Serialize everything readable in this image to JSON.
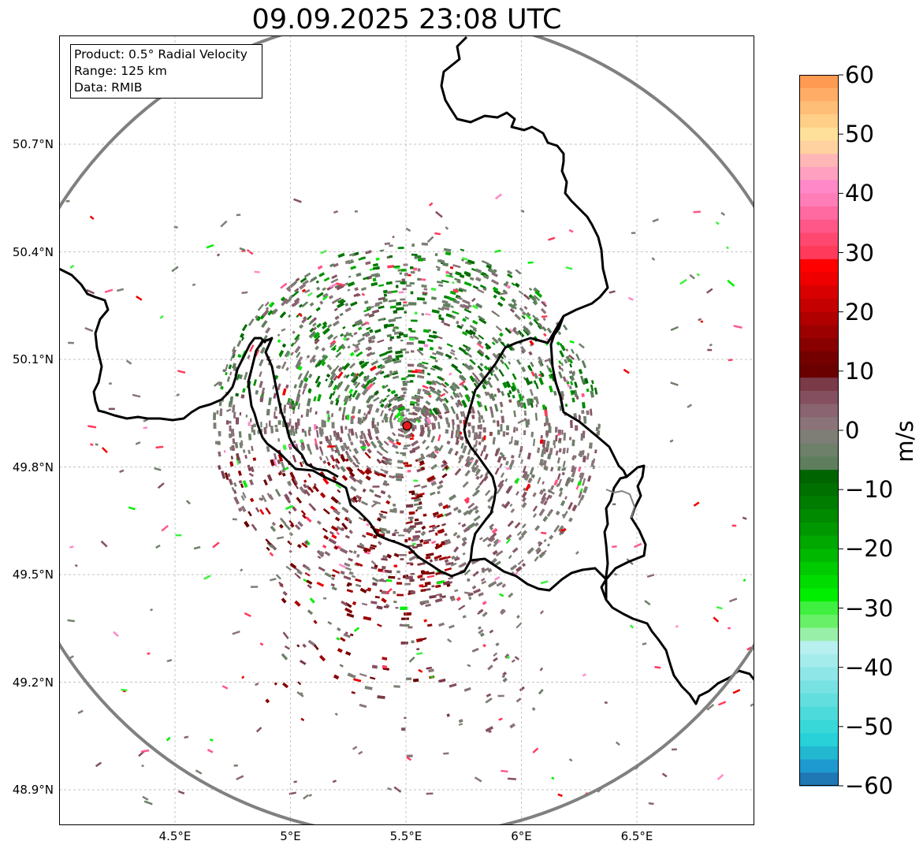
{
  "map": {
    "title": "09.09.2025 23:08 UTC",
    "info_lines": [
      "Product: 0.5° Radial Velocity",
      "Range: 125 km",
      "Data: RMIB"
    ],
    "lat_labels": [
      "50.7°N",
      "50.4°N",
      "50.1°N",
      "49.8°N",
      "49.5°N",
      "49.2°N",
      "48.9°N"
    ],
    "lat_values": [
      50.7,
      50.4,
      50.1,
      49.8,
      49.5,
      49.2,
      48.9
    ],
    "lon_labels": [
      "4.5°E",
      "5°E",
      "5.5°E",
      "6°E",
      "6.5°E"
    ],
    "lon_values": [
      4.5,
      5.0,
      5.5,
      6.0,
      6.5
    ],
    "lon_range": [
      4.0,
      7.0
    ],
    "lat_range": [
      48.8,
      51.0
    ],
    "radar_site": {
      "lon": 5.505,
      "lat": 49.915
    },
    "range_ring_color": "#808080",
    "border_color": "#000000",
    "site_marker_color": "#e41a1c",
    "grid": true
  },
  "colorbar": {
    "unit": "m/s",
    "min": -60,
    "max": 60,
    "tick_labels": [
      "60",
      "50",
      "40",
      "30",
      "20",
      "10",
      "0",
      "−10",
      "−20",
      "−30",
      "−40",
      "−50",
      "−60"
    ],
    "tick_values": [
      60,
      50,
      40,
      30,
      20,
      10,
      0,
      -10,
      -20,
      -30,
      -40,
      -50,
      -60
    ],
    "colors_top_to_bottom": [
      "#ff9a52",
      "#ffad66",
      "#ffbe78",
      "#ffcf88",
      "#ffe09a",
      "#ffd2a0",
      "#ffb6b6",
      "#ffa0c0",
      "#ff88c8",
      "#ff7eb8",
      "#ff6aa0",
      "#ff5888",
      "#ff4870",
      "#ff3a5a",
      "#ff0000",
      "#ee0000",
      "#d80000",
      "#c40000",
      "#b00000",
      "#9c0000",
      "#880000",
      "#740000",
      "#6a0000",
      "#7a3a48",
      "#845060",
      "#8a6470",
      "#8a747a",
      "#7e7e76",
      "#6e806a",
      "#5e7e5e",
      "#006400",
      "#007000",
      "#007c00",
      "#008a00",
      "#009800",
      "#00a800",
      "#00b800",
      "#00ca00",
      "#00dc00",
      "#00ee00",
      "#40f040",
      "#68f068",
      "#98f0a8",
      "#b8f0f0",
      "#a4ecec",
      "#8ee6e6",
      "#78e2e2",
      "#62dede",
      "#4cdada",
      "#38d8d8",
      "#28d0d8",
      "#22b8d0",
      "#1f9ad0",
      "#1f77b4"
    ]
  }
}
